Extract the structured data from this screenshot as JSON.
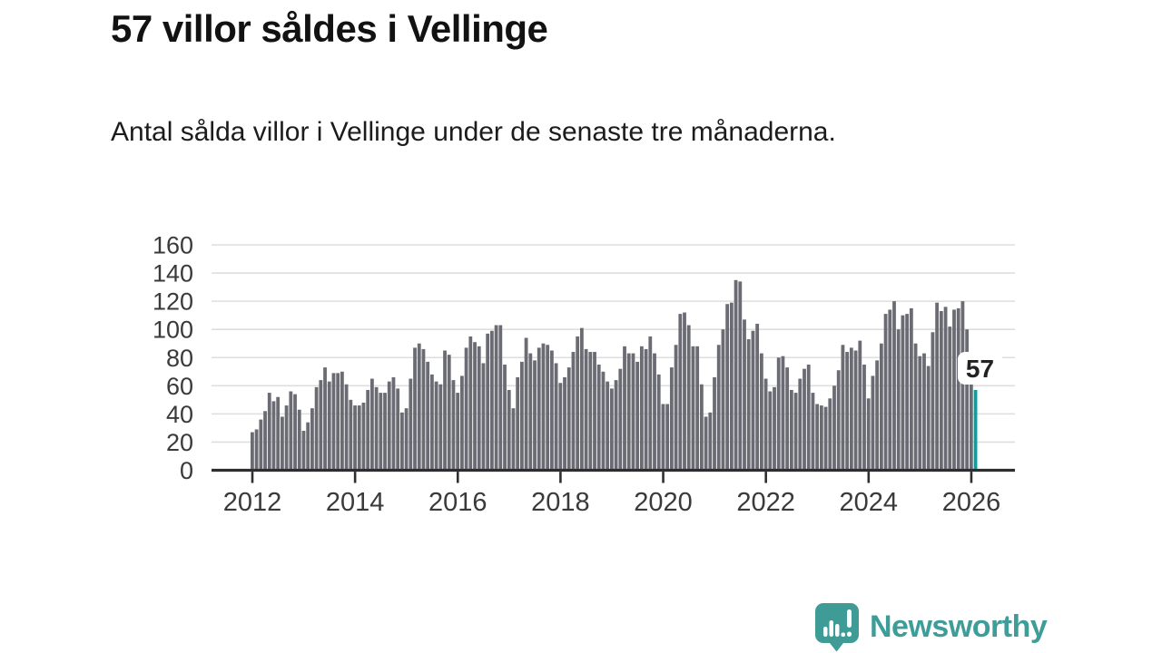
{
  "header": {
    "title": "57 villor såldes i Vellinge",
    "subtitle": "Antal sålda villor i Vellinge under de senaste tre månaderna."
  },
  "chart_data": {
    "type": "bar",
    "title": "57 villor såldes i Vellinge",
    "xlabel": "",
    "ylabel": "",
    "ylim": [
      0,
      160
    ],
    "grid": true,
    "x_start_year": 2012,
    "months_per_bar": 1,
    "x_ticks": [
      2012,
      2014,
      2016,
      2018,
      2020,
      2022,
      2024,
      2026
    ],
    "y_ticks": [
      0,
      20,
      40,
      60,
      80,
      100,
      120,
      140,
      160
    ],
    "values": [
      27,
      29,
      36,
      42,
      55,
      49,
      52,
      38,
      46,
      56,
      54,
      43,
      28,
      34,
      44,
      59,
      64,
      73,
      63,
      69,
      69,
      70,
      61,
      50,
      46,
      46,
      48,
      57,
      65,
      59,
      55,
      55,
      63,
      66,
      58,
      41,
      44,
      65,
      87,
      90,
      86,
      77,
      68,
      63,
      61,
      85,
      82,
      64,
      55,
      67,
      87,
      95,
      91,
      88,
      76,
      97,
      99,
      103,
      103,
      75,
      57,
      44,
      66,
      77,
      94,
      83,
      78,
      87,
      90,
      89,
      85,
      76,
      62,
      66,
      73,
      84,
      95,
      101,
      86,
      84,
      84,
      75,
      70,
      63,
      58,
      64,
      72,
      88,
      83,
      83,
      77,
      88,
      86,
      95,
      83,
      68,
      47,
      47,
      73,
      89,
      111,
      112,
      103,
      88,
      88,
      61,
      38,
      41,
      66,
      89,
      100,
      118,
      119,
      135,
      134,
      107,
      93,
      99,
      104,
      83,
      65,
      56,
      59,
      80,
      81,
      73,
      57,
      55,
      65,
      72,
      75,
      55,
      47,
      46,
      45,
      51,
      60,
      71,
      89,
      84,
      87,
      85,
      92,
      75,
      51,
      67,
      78,
      90,
      111,
      114,
      120,
      100,
      110,
      111,
      115,
      90,
      81,
      83,
      74,
      98,
      119,
      113,
      116,
      102,
      114,
      115,
      120,
      100,
      61,
      57
    ],
    "highlight_last": true,
    "annotation": {
      "label": "57"
    },
    "colors": {
      "bar": "#6b6b74",
      "highlight": "#00a2a2",
      "grid": "#dedede",
      "axis": "#2e2e2e",
      "tick_text": "#3a3a3a",
      "brand": "#3f9d99"
    }
  },
  "footer": {
    "brand": "Newsworthy"
  }
}
